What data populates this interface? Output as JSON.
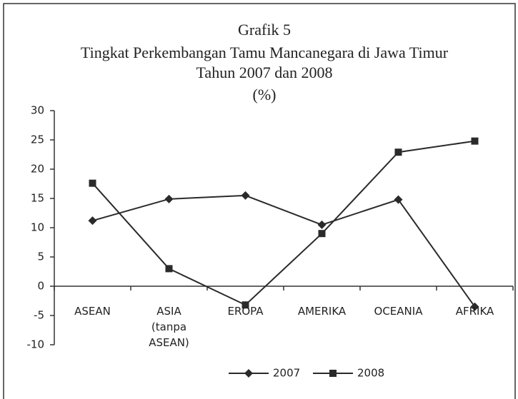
{
  "chart_data": {
    "type": "line",
    "title": "Grafik 5",
    "subtitle": [
      "Tingkat Perkembangan Tamu Mancanegara di Jawa Timur",
      "Tahun 2007 dan 2008",
      "(%)"
    ],
    "categories": [
      "ASEAN",
      "ASIA\n(tanpa\nASEAN)",
      "EROPA",
      "AMERIKA",
      "OCEANIA",
      "AFRIKA"
    ],
    "series": [
      {
        "name": "2007",
        "color": "#2a2a2a",
        "marker": "diamond",
        "values": [
          11.2,
          14.9,
          15.5,
          10.5,
          14.8,
          -3.5
        ]
      },
      {
        "name": "2008",
        "color": "#2a2a2a",
        "marker": "square",
        "values": [
          17.6,
          3.0,
          -3.2,
          9.0,
          22.9,
          24.8
        ]
      }
    ],
    "ylim": [
      -10,
      30
    ],
    "yticks": [
      -10,
      -5,
      0,
      5,
      10,
      15,
      20,
      25,
      30
    ],
    "legend": "bottom"
  }
}
